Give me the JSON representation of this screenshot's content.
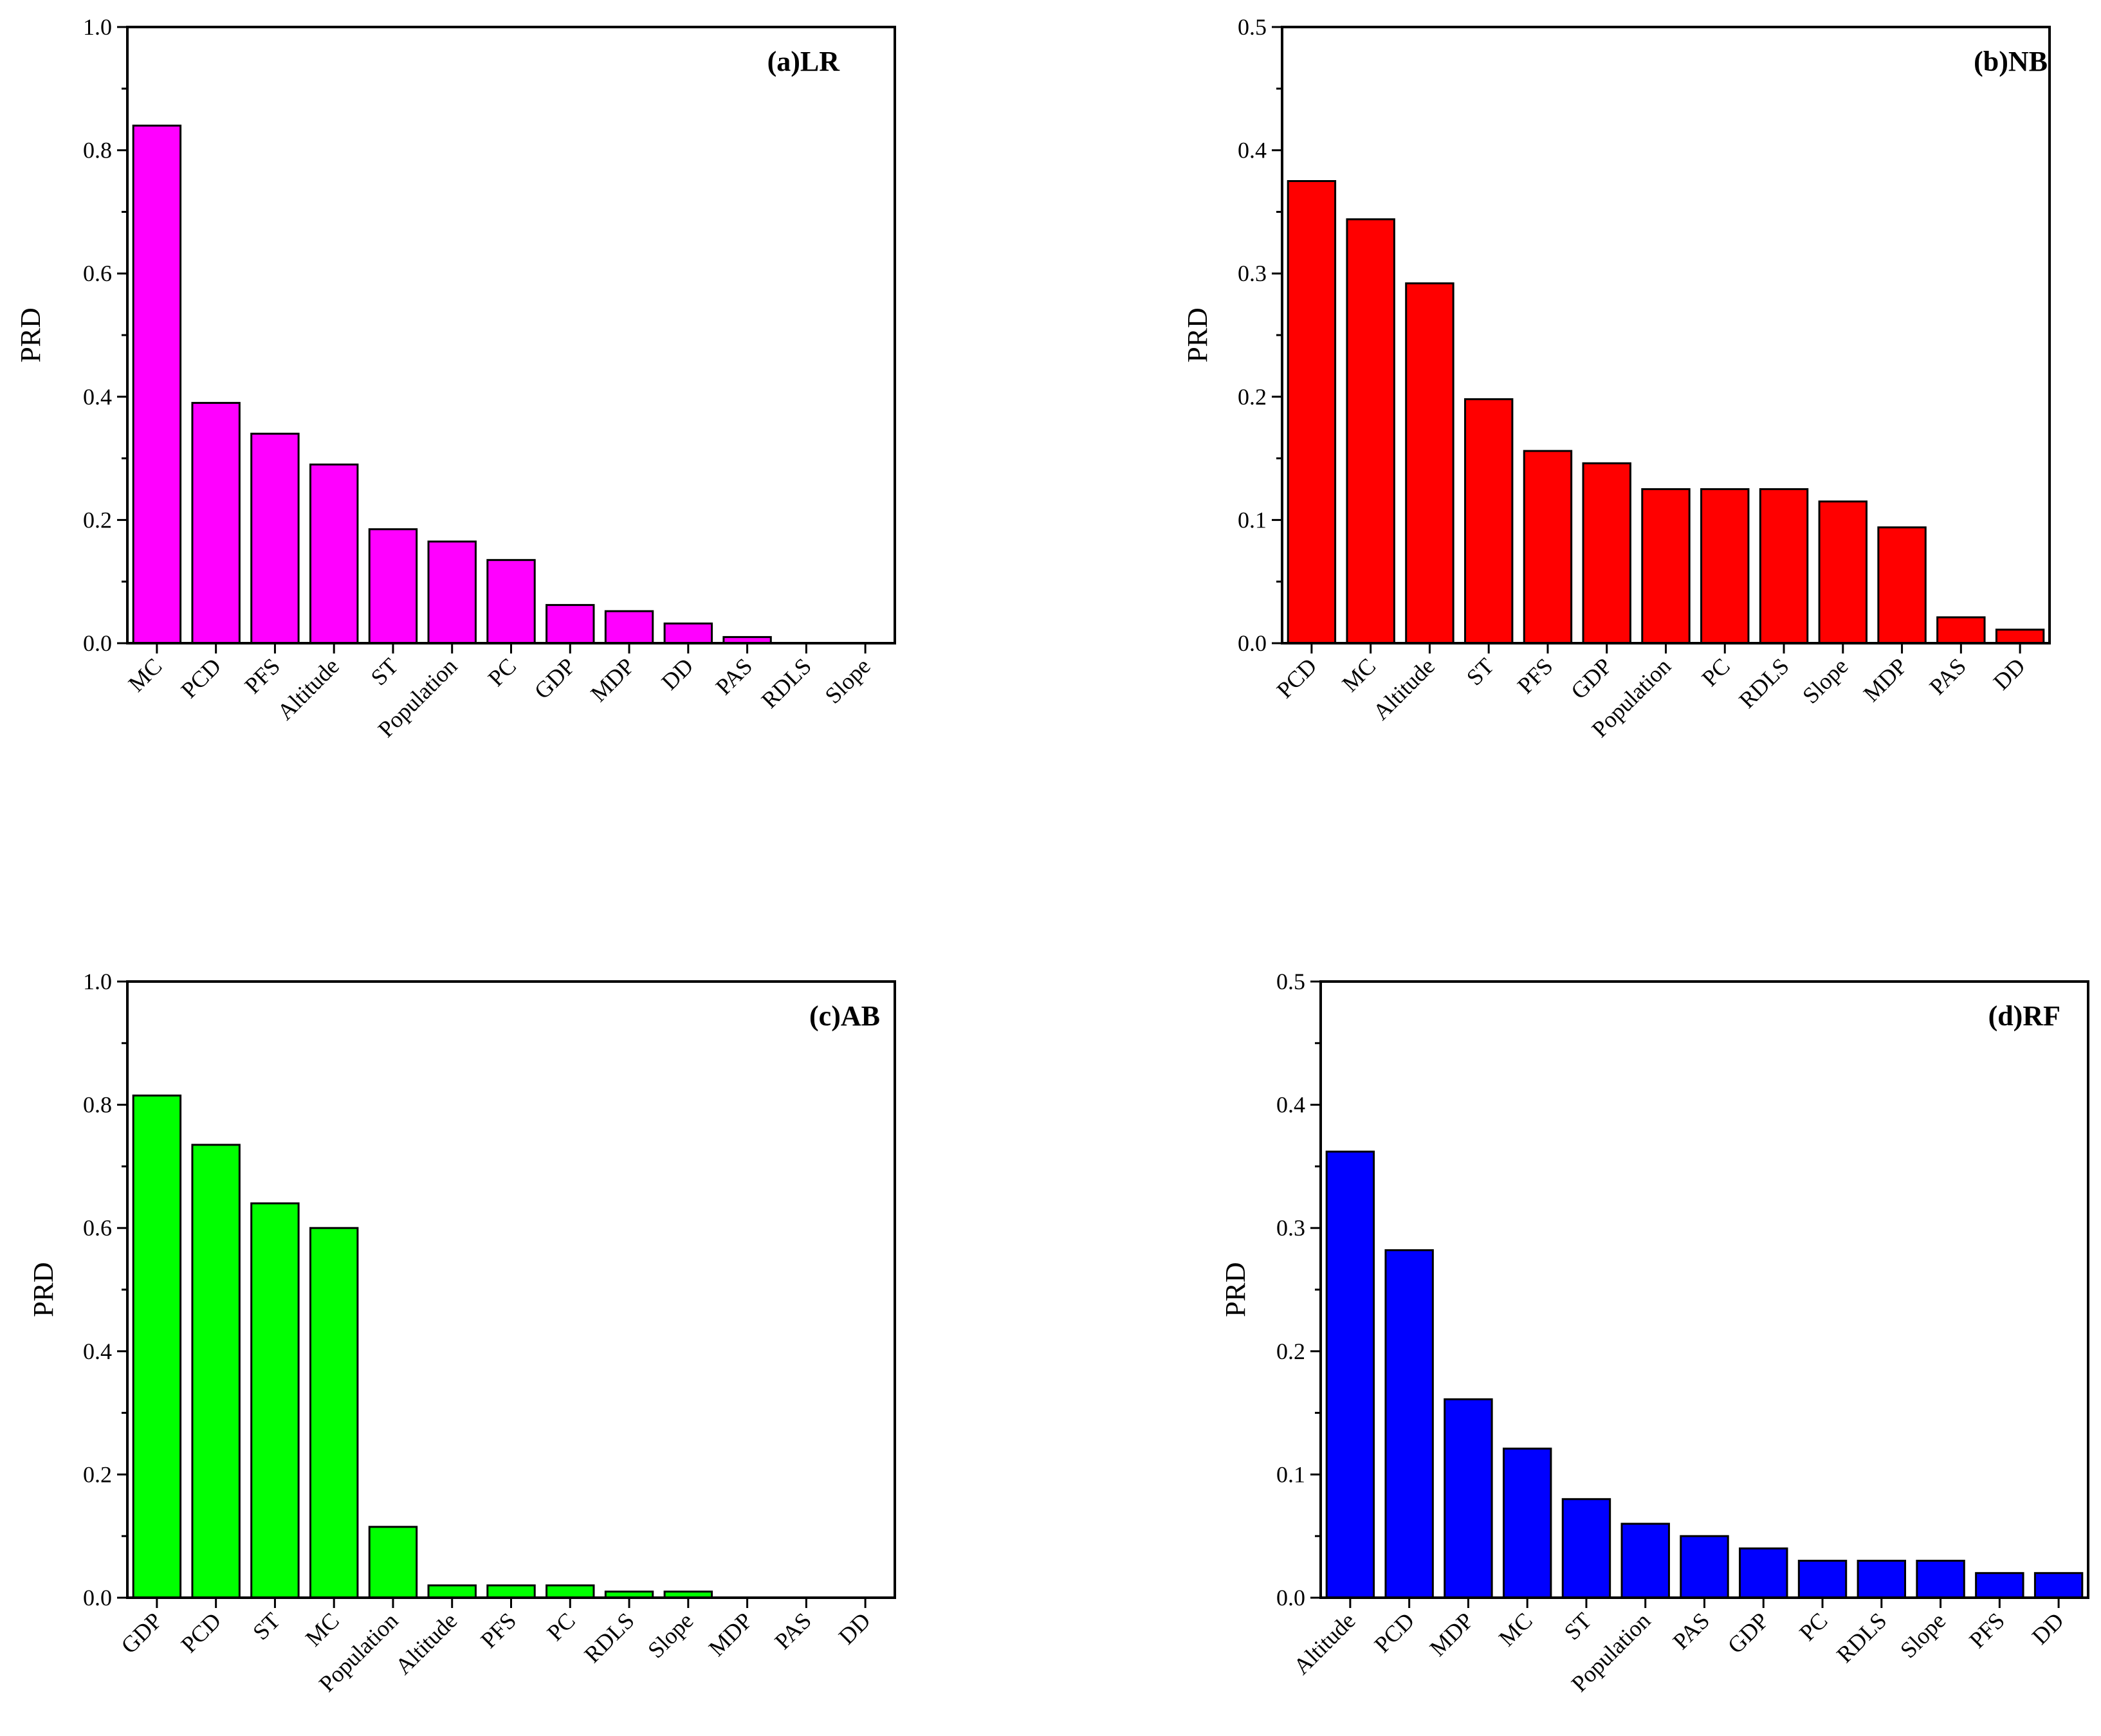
{
  "chart_data": [
    {
      "type": "bar",
      "title": "(a)LR",
      "xlabel": "",
      "ylabel": "PRD",
      "ylim": [
        0,
        1.0
      ],
      "yticks": [
        "0.0",
        "0.2",
        "0.4",
        "0.6",
        "0.8",
        "1.0"
      ],
      "color": "#ff00ff",
      "categories": [
        "MC",
        "PCD",
        "PFS",
        "Altitude",
        "ST",
        "Population",
        "PC",
        "GDP",
        "MDP",
        "DD",
        "PAS",
        "RDLS",
        "Slope"
      ],
      "values": [
        0.84,
        0.39,
        0.34,
        0.29,
        0.185,
        0.165,
        0.135,
        0.062,
        0.052,
        0.032,
        0.01,
        0.0,
        0.0
      ]
    },
    {
      "type": "bar",
      "title": "(b)NB",
      "xlabel": "",
      "ylabel": "PRD",
      "ylim": [
        0,
        0.5
      ],
      "yticks": [
        "0.0",
        "0.1",
        "0.2",
        "0.3",
        "0.4",
        "0.5"
      ],
      "color": "#ff0000",
      "categories": [
        "PCD",
        "MC",
        "Altitude",
        "ST",
        "PFS",
        "GDP",
        "Population",
        "PC",
        "RDLS",
        "Slope",
        "MDP",
        "PAS",
        "DD"
      ],
      "values": [
        0.375,
        0.344,
        0.292,
        0.198,
        0.156,
        0.146,
        0.125,
        0.125,
        0.125,
        0.115,
        0.094,
        0.021,
        0.011
      ]
    },
    {
      "type": "bar",
      "title": "(c)AB",
      "xlabel": "",
      "ylabel": "PRD",
      "ylim": [
        0,
        1.0
      ],
      "yticks": [
        "0.0",
        "0.2",
        "0.4",
        "0.6",
        "0.8",
        "1.0"
      ],
      "color": "#00ff00",
      "categories": [
        "GDP",
        "PCD",
        "ST",
        "MC",
        "Population",
        "Altitude",
        "PFS",
        "PC",
        "RDLS",
        "Slope",
        "MDP",
        "PAS",
        "DD"
      ],
      "values": [
        0.815,
        0.735,
        0.64,
        0.6,
        0.115,
        0.02,
        0.02,
        0.02,
        0.01,
        0.01,
        0.0,
        0.0,
        0.0
      ]
    },
    {
      "type": "bar",
      "title": "(d)RF",
      "xlabel": "",
      "ylabel": "PRD",
      "ylim": [
        0,
        0.5
      ],
      "yticks": [
        "0.0",
        "0.1",
        "0.2",
        "0.3",
        "0.4",
        "0.5"
      ],
      "color": "#0000ff",
      "categories": [
        "Altitude",
        "PCD",
        "MDP",
        "MC",
        "ST",
        "Population",
        "PAS",
        "GDP",
        "PC",
        "RDLS",
        "Slope",
        "PFS",
        "DD"
      ],
      "values": [
        0.362,
        0.282,
        0.161,
        0.121,
        0.08,
        0.06,
        0.05,
        0.04,
        0.03,
        0.03,
        0.03,
        0.02,
        0.02
      ]
    }
  ]
}
